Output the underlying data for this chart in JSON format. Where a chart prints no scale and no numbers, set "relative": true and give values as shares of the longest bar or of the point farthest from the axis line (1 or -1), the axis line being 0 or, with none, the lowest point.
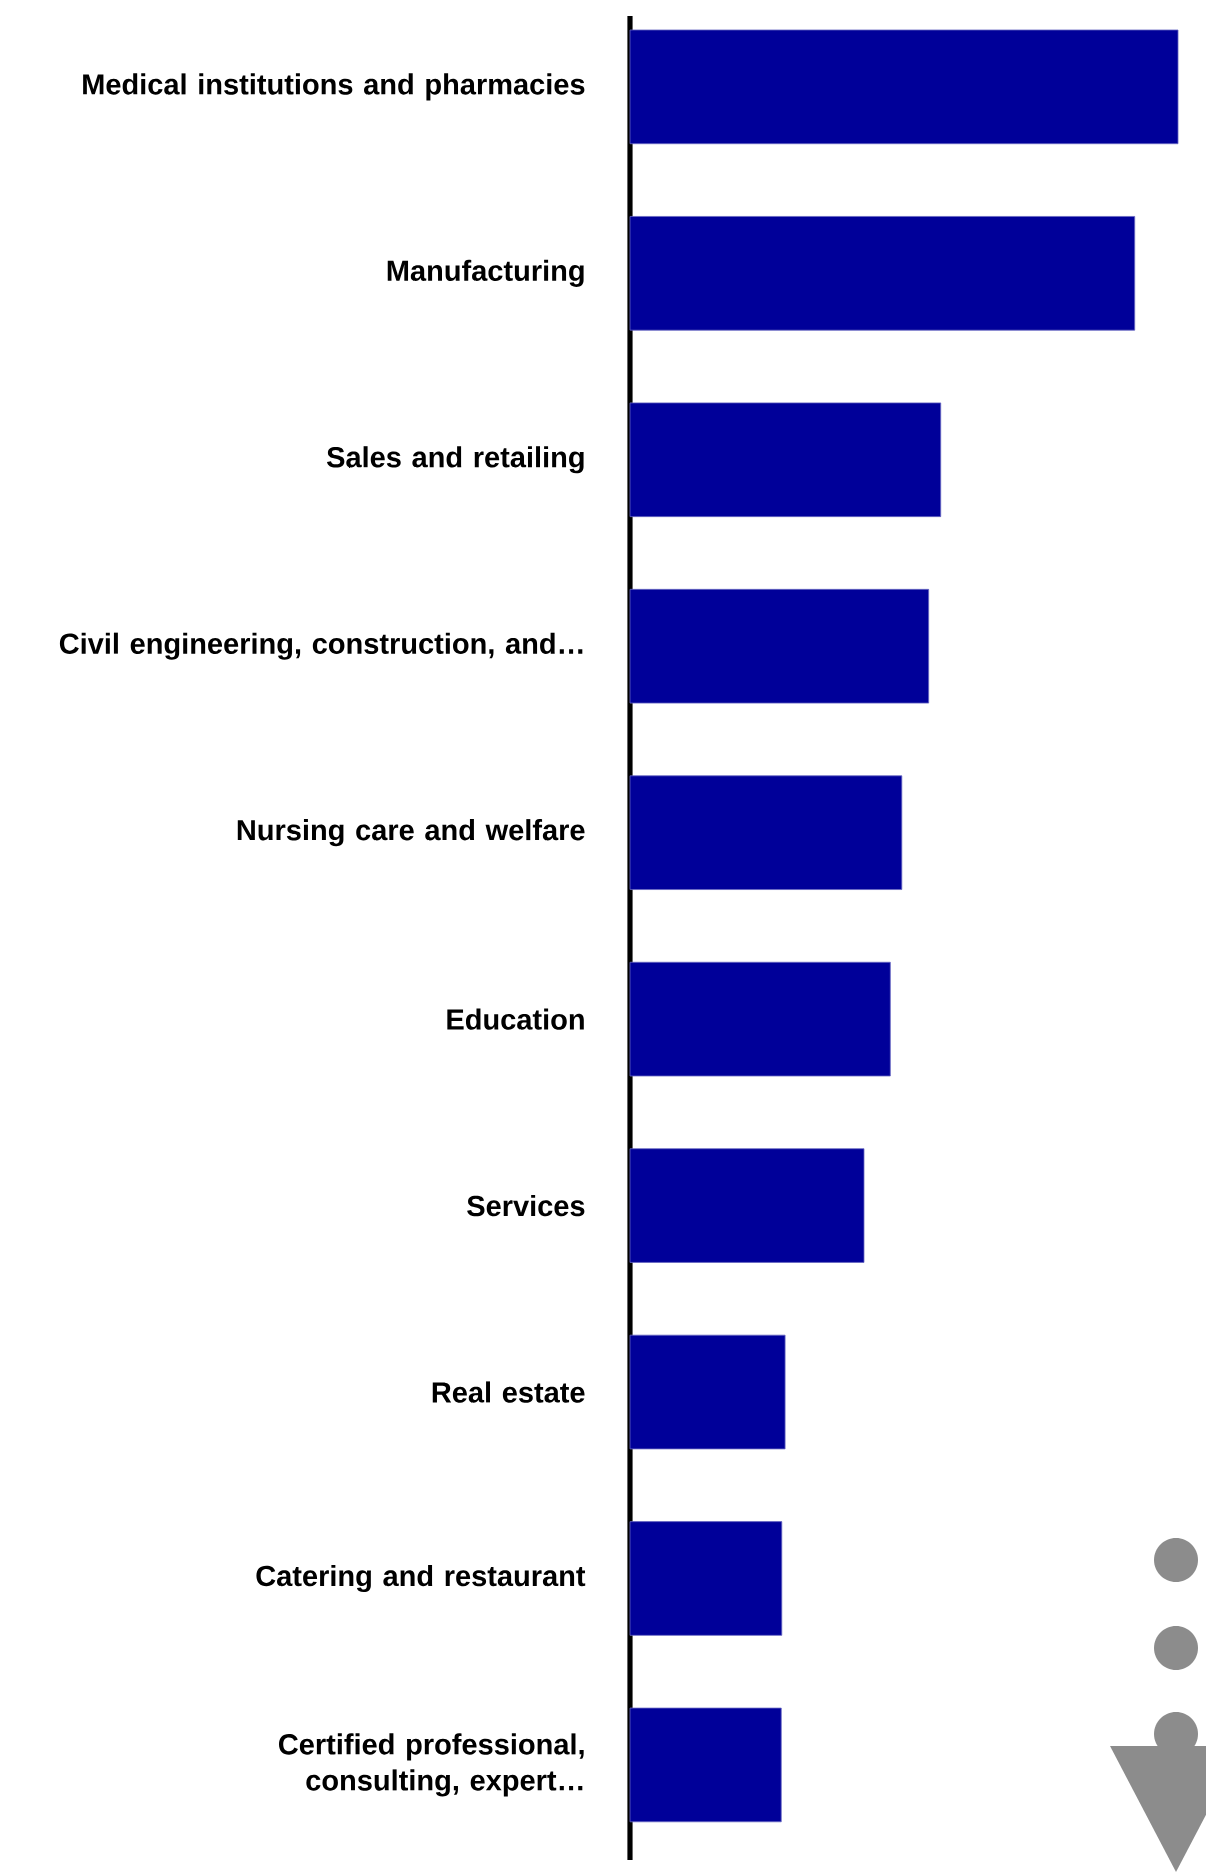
{
  "chart_data": {
    "type": "bar",
    "orientation": "horizontal",
    "relative": true,
    "color": "#000099",
    "categories": [
      "Medical institutions and pharmacies",
      "Manufacturing",
      "Sales and retailing",
      "Civil engineering, construction, and…",
      "Nursing care and welfare",
      "Education",
      "Services",
      "Real estate",
      "Catering and restaurant",
      "Certified professional, consulting, expert…"
    ],
    "values": [
      1,
      0.921,
      0.567,
      0.545,
      0.496,
      0.475,
      0.427,
      0.283,
      0.277,
      0.276
    ]
  }
}
